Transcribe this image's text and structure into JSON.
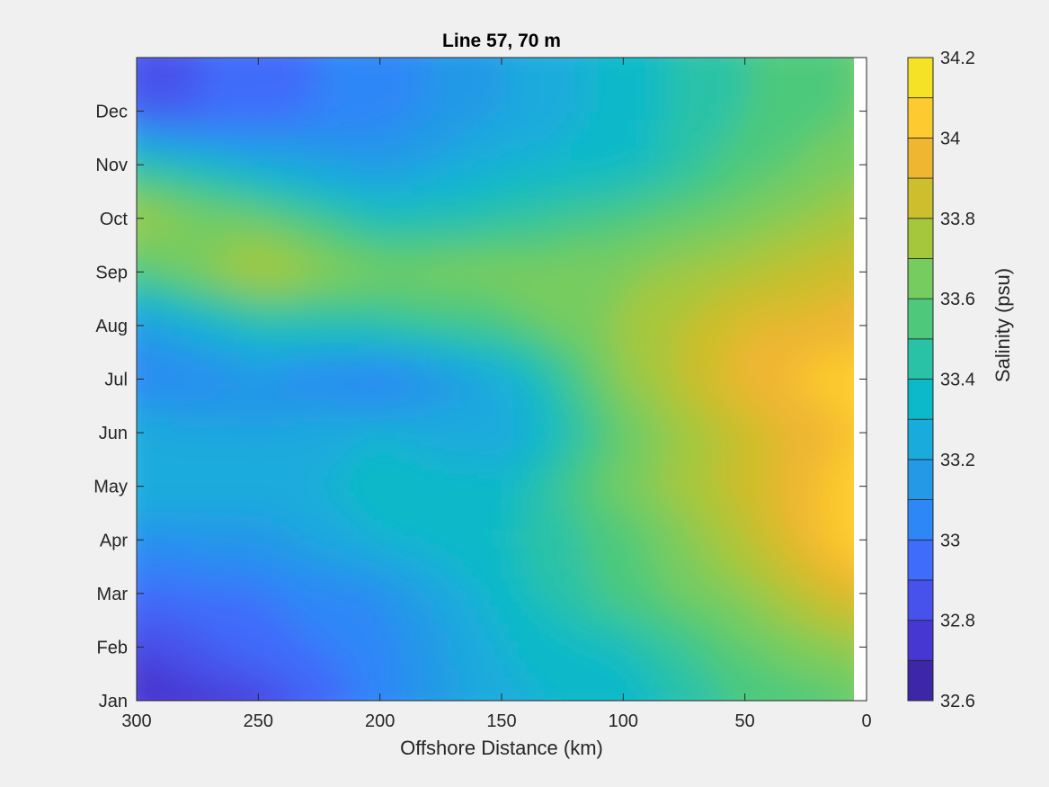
{
  "chart_data": {
    "type": "heatmap",
    "title": "Line 57, 70 m",
    "xlabel": "Offshore Distance (km)",
    "ylabel": "",
    "x_reversed": true,
    "xlim": [
      0,
      300
    ],
    "x_ticks": [
      300,
      250,
      200,
      150,
      100,
      50,
      0
    ],
    "y_ticks": [
      "Jan",
      "Feb",
      "Mar",
      "Apr",
      "May",
      "Jun",
      "Jul",
      "Aug",
      "Sep",
      "Oct",
      "Nov",
      "Dec"
    ],
    "colorbar": {
      "label": "Salinity (psu)",
      "range": [
        32.6,
        34.2
      ],
      "ticks": [
        "32.6",
        "32.8",
        "33",
        "33.2",
        "33.4",
        "33.6",
        "33.8",
        "34",
        "34.2"
      ],
      "levels": [
        32.6,
        32.7,
        32.8,
        32.9,
        33.0,
        33.1,
        33.2,
        33.3,
        33.4,
        33.5,
        33.6,
        33.7,
        33.8,
        33.9,
        34.0,
        34.1,
        34.2
      ],
      "colors": [
        "#3e26a8",
        "#4637d2",
        "#4752ec",
        "#3f6cfa",
        "#2e87f7",
        "#2499e6",
        "#1aabdd",
        "#0cb9c8",
        "#2ac2a7",
        "#4ec97c",
        "#77cc5f",
        "#a4c73c",
        "#ccbe2c",
        "#eeb631",
        "#fdcb2f",
        "#f5e125"
      ]
    },
    "x": [
      300,
      250,
      200,
      150,
      100,
      50,
      5
    ],
    "y": [
      "Jan",
      "Feb",
      "Mar",
      "Apr",
      "May",
      "Jun",
      "Jul",
      "Aug",
      "Sep",
      "Oct",
      "Nov",
      "Dec"
    ],
    "z": [
      [
        32.72,
        32.8,
        33.05,
        33.28,
        33.33,
        33.52,
        33.6
      ],
      [
        32.8,
        32.95,
        33.05,
        33.3,
        33.4,
        33.6,
        33.72
      ],
      [
        32.95,
        33.0,
        33.1,
        33.35,
        33.55,
        33.7,
        33.92
      ],
      [
        33.1,
        33.15,
        33.3,
        33.38,
        33.55,
        33.8,
        34.08
      ],
      [
        33.3,
        33.25,
        33.35,
        33.35,
        33.65,
        33.85,
        34.08
      ],
      [
        33.25,
        33.2,
        33.3,
        33.2,
        33.6,
        33.85,
        34.0
      ],
      [
        33.05,
        33.1,
        33.0,
        33.25,
        33.7,
        33.95,
        34.08
      ],
      [
        33.15,
        33.4,
        33.45,
        33.55,
        33.72,
        33.9,
        33.95
      ],
      [
        33.55,
        33.8,
        33.65,
        33.65,
        33.68,
        33.78,
        33.88
      ],
      [
        33.75,
        33.62,
        33.4,
        33.45,
        33.55,
        33.65,
        33.75
      ],
      [
        33.45,
        33.25,
        33.15,
        33.3,
        33.35,
        33.55,
        33.68
      ],
      [
        32.85,
        32.95,
        33.05,
        33.2,
        33.35,
        33.5,
        33.6
      ]
    ]
  }
}
